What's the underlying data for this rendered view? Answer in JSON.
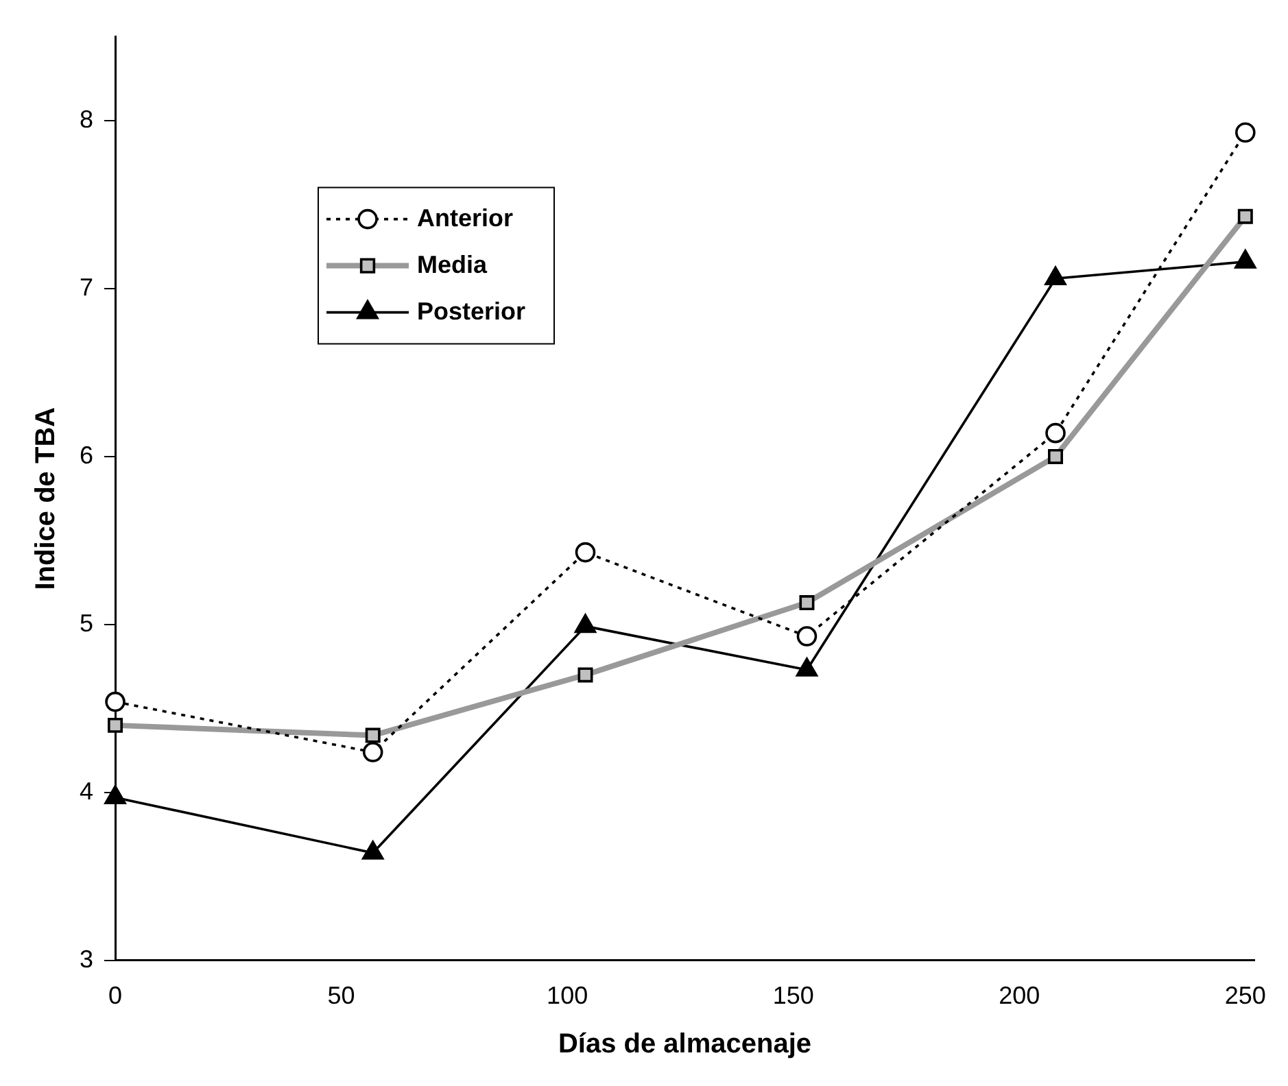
{
  "chart_data": {
    "type": "line",
    "xlabel": "Días de almacenaje",
    "ylabel": "Indice de TBA",
    "x": [
      0,
      57,
      104,
      153,
      208,
      250
    ],
    "xlim": [
      0,
      252
    ],
    "xticks": [
      0,
      50,
      100,
      150,
      200,
      250
    ],
    "ylim": [
      3,
      8.5
    ],
    "yticks": [
      3,
      4,
      5,
      6,
      7,
      8
    ],
    "grid": false,
    "legend": "top left",
    "series": [
      {
        "name": "Anterior",
        "color": "#000000",
        "marker": "circle",
        "line_style": "dotted",
        "values": [
          4.54,
          4.24,
          5.43,
          4.93,
          6.14,
          7.93
        ]
      },
      {
        "name": "Media",
        "color": "#999999",
        "marker": "square",
        "line_style": "solid",
        "values": [
          4.4,
          4.34,
          4.7,
          5.13,
          6.0,
          7.43
        ]
      },
      {
        "name": "Posterior",
        "color": "#000000",
        "marker": "triangle",
        "line_style": "solid",
        "values": [
          3.97,
          3.64,
          4.99,
          4.73,
          7.06,
          7.16
        ]
      }
    ]
  }
}
